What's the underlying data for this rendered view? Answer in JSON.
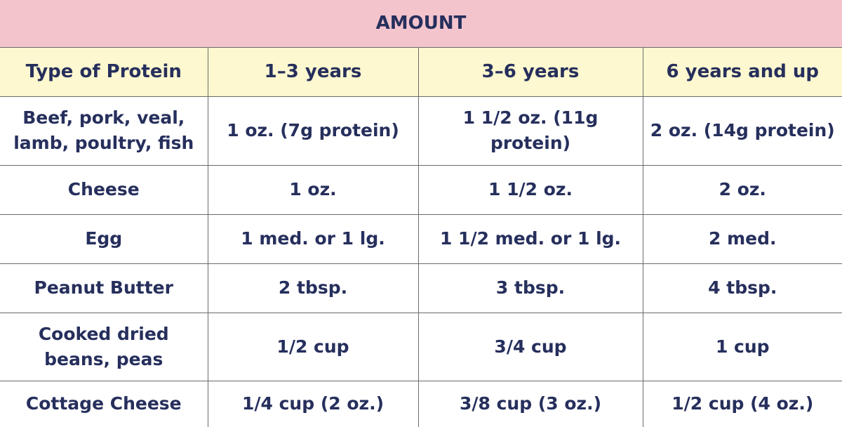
{
  "title": "AMOUNT",
  "columns": [
    "Type of Protein",
    "1–3 years",
    "3–6 years",
    "6 years and up"
  ],
  "rows": [
    [
      "Beef, pork, veal, lamb, poultry, fish",
      "1 oz. (7g protein)",
      "1 1/2 oz. (11g protein)",
      "2 oz. (14g protein)"
    ],
    [
      "Cheese",
      "1 oz.",
      "1 1/2 oz.",
      "2 oz."
    ],
    [
      "Egg",
      "1 med. or 1 lg.",
      "1 1/2 med. or 1 lg.",
      "2 med."
    ],
    [
      "Peanut Butter",
      "2 tbsp.",
      "3 tbsp.",
      "4 tbsp."
    ],
    [
      "Cooked dried beans, peas",
      "1/2 cup",
      "3/4 cup",
      "1 cup"
    ],
    [
      "Cottage Cheese",
      "1/4 cup (2 oz.)",
      "3/8 cup (3 oz.)",
      "1/2 cup (4 oz.)"
    ]
  ],
  "colors": {
    "title_bg": "#f4c4cd",
    "header_bg": "#fdf8cf",
    "text": "#262f5c"
  }
}
